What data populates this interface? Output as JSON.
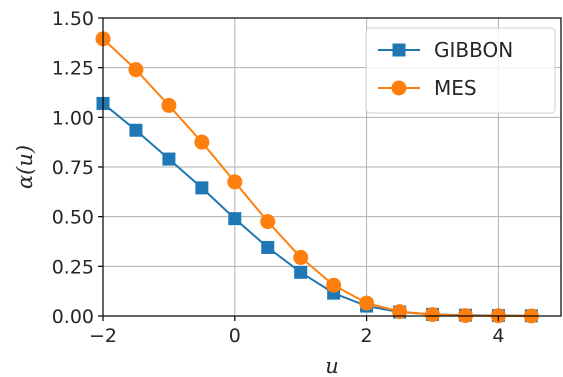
{
  "chart_data": {
    "type": "line",
    "xlabel": "u",
    "ylabel": "α(u)",
    "xlim": [
      -2,
      4.95
    ],
    "ylim": [
      0,
      1.5
    ],
    "grid": true,
    "legend_position": "top-right",
    "x_ticks": [
      -2,
      0,
      2,
      4
    ],
    "x_tick_labels": [
      "−2",
      "0",
      "2",
      "4"
    ],
    "y_ticks": [
      0,
      0.25,
      0.5,
      0.75,
      1.0,
      1.25,
      1.5
    ],
    "y_tick_labels": [
      "0.00",
      "0.25",
      "0.50",
      "0.75",
      "1.00",
      "1.25",
      "1.50"
    ],
    "series": [
      {
        "name": "GIBBON",
        "color": "#1f77b4",
        "marker": "square",
        "x": [
          -2.0,
          -1.5,
          -1.0,
          -0.5,
          0.0,
          0.5,
          1.0,
          1.5,
          2.0,
          2.5,
          3.0,
          3.5,
          4.0,
          4.5
        ],
        "y": [
          1.07,
          0.935,
          0.79,
          0.645,
          0.49,
          0.345,
          0.22,
          0.115,
          0.05,
          0.02,
          0.008,
          0.004,
          0.002,
          0.001
        ]
      },
      {
        "name": "MES",
        "color": "#ff7f0e",
        "marker": "circle",
        "x": [
          -2.0,
          -1.5,
          -1.0,
          -0.5,
          0.0,
          0.5,
          1.0,
          1.5,
          2.0,
          2.5,
          3.0,
          3.5,
          4.0,
          4.5
        ],
        "y": [
          1.395,
          1.24,
          1.06,
          0.875,
          0.675,
          0.475,
          0.295,
          0.155,
          0.065,
          0.022,
          0.007,
          0.002,
          0.001,
          0.0
        ]
      }
    ]
  }
}
